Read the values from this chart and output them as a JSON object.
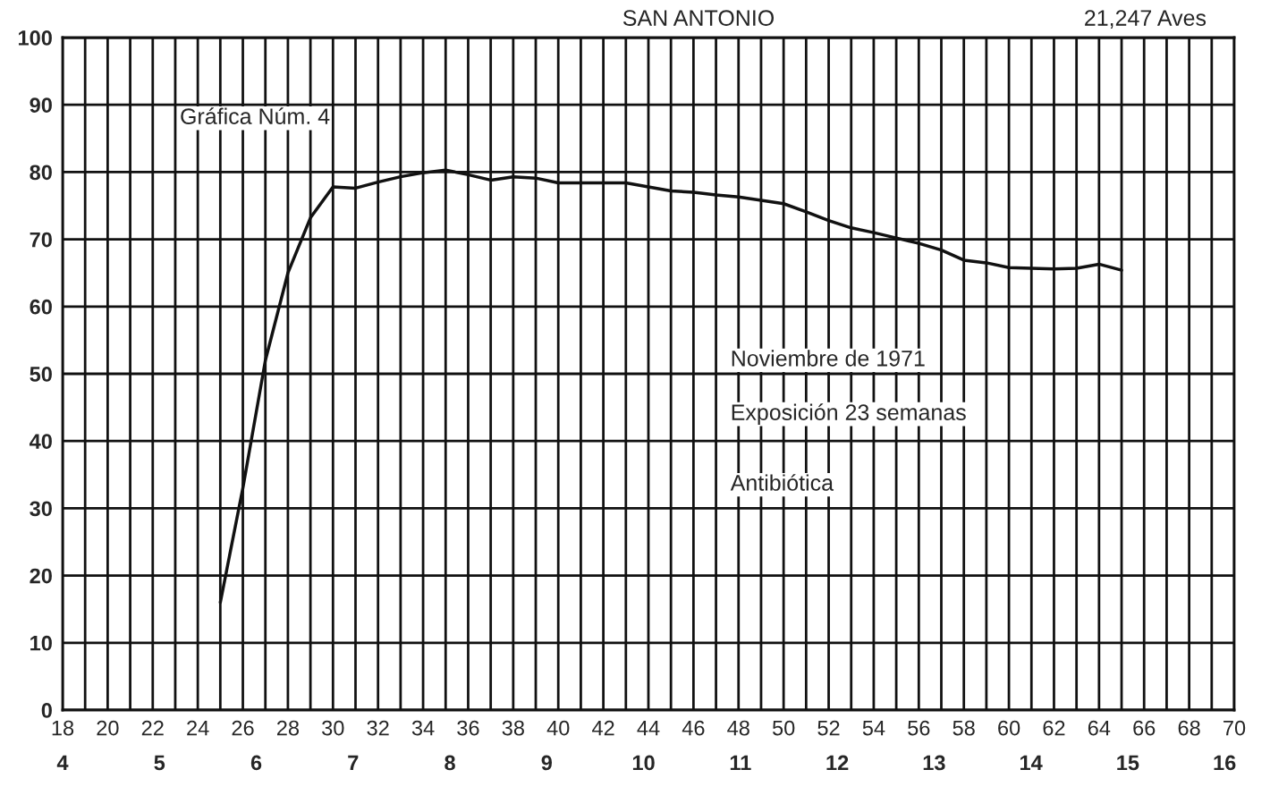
{
  "chart_data": {
    "type": "line",
    "title": "SAN ANTONIO",
    "annotations": [
      "21,247 Aves",
      "Gráfica Núm. 4",
      "Noviembre de 1971",
      "Exposición 23 semanas",
      "Antibiótica"
    ],
    "x": [
      25,
      26,
      27,
      28,
      29,
      30,
      31,
      32,
      33,
      34,
      35,
      36,
      37,
      38,
      39,
      40,
      41,
      42,
      43,
      44,
      45,
      46,
      47,
      48,
      49,
      50,
      51,
      52,
      53,
      54,
      55,
      56,
      57,
      58,
      59,
      60,
      61,
      62,
      63,
      64,
      65
    ],
    "series": [
      {
        "color": "#111111",
        "values": [
          16,
          33,
          52,
          65,
          73.2,
          77.8,
          77.6,
          78.5,
          79.3,
          79.9,
          80.3,
          79.6,
          78.8,
          79.3,
          79.1,
          78.4,
          78.4,
          78.4,
          78.4,
          77.8,
          77.2,
          77.0,
          76.6,
          76.3,
          75.8,
          75.3,
          74.1,
          72.8,
          71.7,
          71.0,
          70.2,
          69.4,
          68.4,
          66.9,
          66.5,
          65.8,
          65.7,
          65.6,
          65.7,
          66.3,
          65.4
        ]
      }
    ],
    "xlim": [
      18,
      70
    ],
    "xticks": [
      18,
      {
        "value": 19,
        "label": null
      },
      20,
      {
        "value": 21,
        "label": null
      },
      22,
      {
        "value": 23,
        "label": null
      },
      24,
      {
        "value": 25,
        "label": null
      },
      26,
      {
        "value": 27,
        "label": null
      },
      28,
      {
        "value": 29,
        "label": null
      },
      30,
      {
        "value": 31,
        "label": null
      },
      32,
      {
        "value": 33,
        "label": null
      },
      34,
      {
        "value": 35,
        "label": null
      },
      36,
      {
        "value": 37,
        "label": null
      },
      38,
      {
        "value": 39,
        "label": null
      },
      40,
      {
        "value": 41,
        "label": null
      },
      42,
      {
        "value": 43,
        "label": null
      },
      44,
      {
        "value": 45,
        "label": null
      },
      46,
      {
        "value": 47,
        "label": null
      },
      48,
      {
        "value": 49,
        "label": null
      },
      50,
      {
        "value": 51,
        "label": null
      },
      52,
      {
        "value": 53,
        "label": null
      },
      54,
      {
        "value": 55,
        "label": null
      },
      56,
      {
        "value": 57,
        "label": null
      },
      58,
      {
        "value": 59,
        "label": null
      },
      60,
      {
        "value": 61,
        "label": null
      },
      62,
      {
        "value": 63,
        "label": null
      },
      64,
      {
        "value": 65,
        "label": null
      },
      66,
      {
        "value": 67,
        "label": null
      },
      68,
      {
        "value": 69,
        "label": null
      },
      70
    ],
    "x2lim": [
      4,
      16.1
    ],
    "x2ticks": [
      4,
      5,
      6,
      7,
      8,
      9,
      10,
      11,
      12,
      13,
      14,
      15,
      16
    ],
    "ylim": [
      0,
      100
    ],
    "yticks": [
      0,
      10,
      20,
      30,
      40,
      50,
      60,
      70,
      80,
      90,
      100
    ],
    "grid": true,
    "legend": false,
    "marker": "none",
    "line_style": "solid"
  }
}
